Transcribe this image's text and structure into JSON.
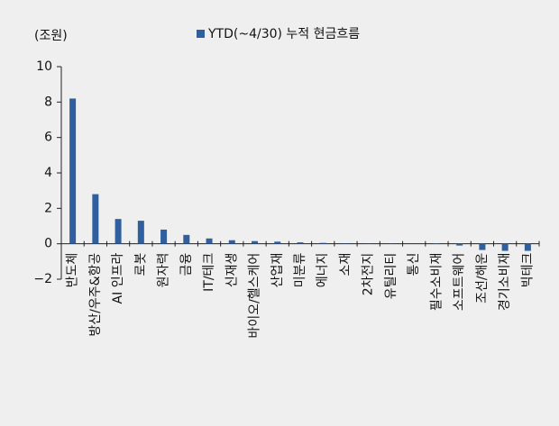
{
  "chart_data": {
    "type": "bar",
    "unit_label": "(조원)",
    "categories": [
      "반도체",
      "방산/우주&항공",
      "AI 인프라",
      "로봇",
      "원자력",
      "금융",
      "IT/테크",
      "신재생",
      "바이오/헬스케어",
      "산업재",
      "미분류",
      "에너지",
      "소재",
      "2차전지",
      "유틸리티",
      "통신",
      "필수소비재",
      "소프트웨어",
      "조선/해운",
      "경기소비재",
      "빅테크"
    ],
    "series": [
      {
        "name": "YTD(~4/30) 누적 현금흐름",
        "color": "#2f5f9f",
        "values": [
          8.2,
          2.8,
          1.4,
          1.3,
          0.8,
          0.5,
          0.3,
          0.2,
          0.15,
          0.12,
          0.08,
          0.05,
          0.02,
          0.01,
          0.01,
          0,
          -0.02,
          -0.1,
          -0.35,
          -0.4,
          -0.4
        ]
      }
    ],
    "ylim": [
      -2,
      10
    ],
    "yticks": [
      {
        "value": -2,
        "label": "−2"
      },
      0,
      2,
      4,
      6,
      8,
      10
    ],
    "grid": false
  }
}
